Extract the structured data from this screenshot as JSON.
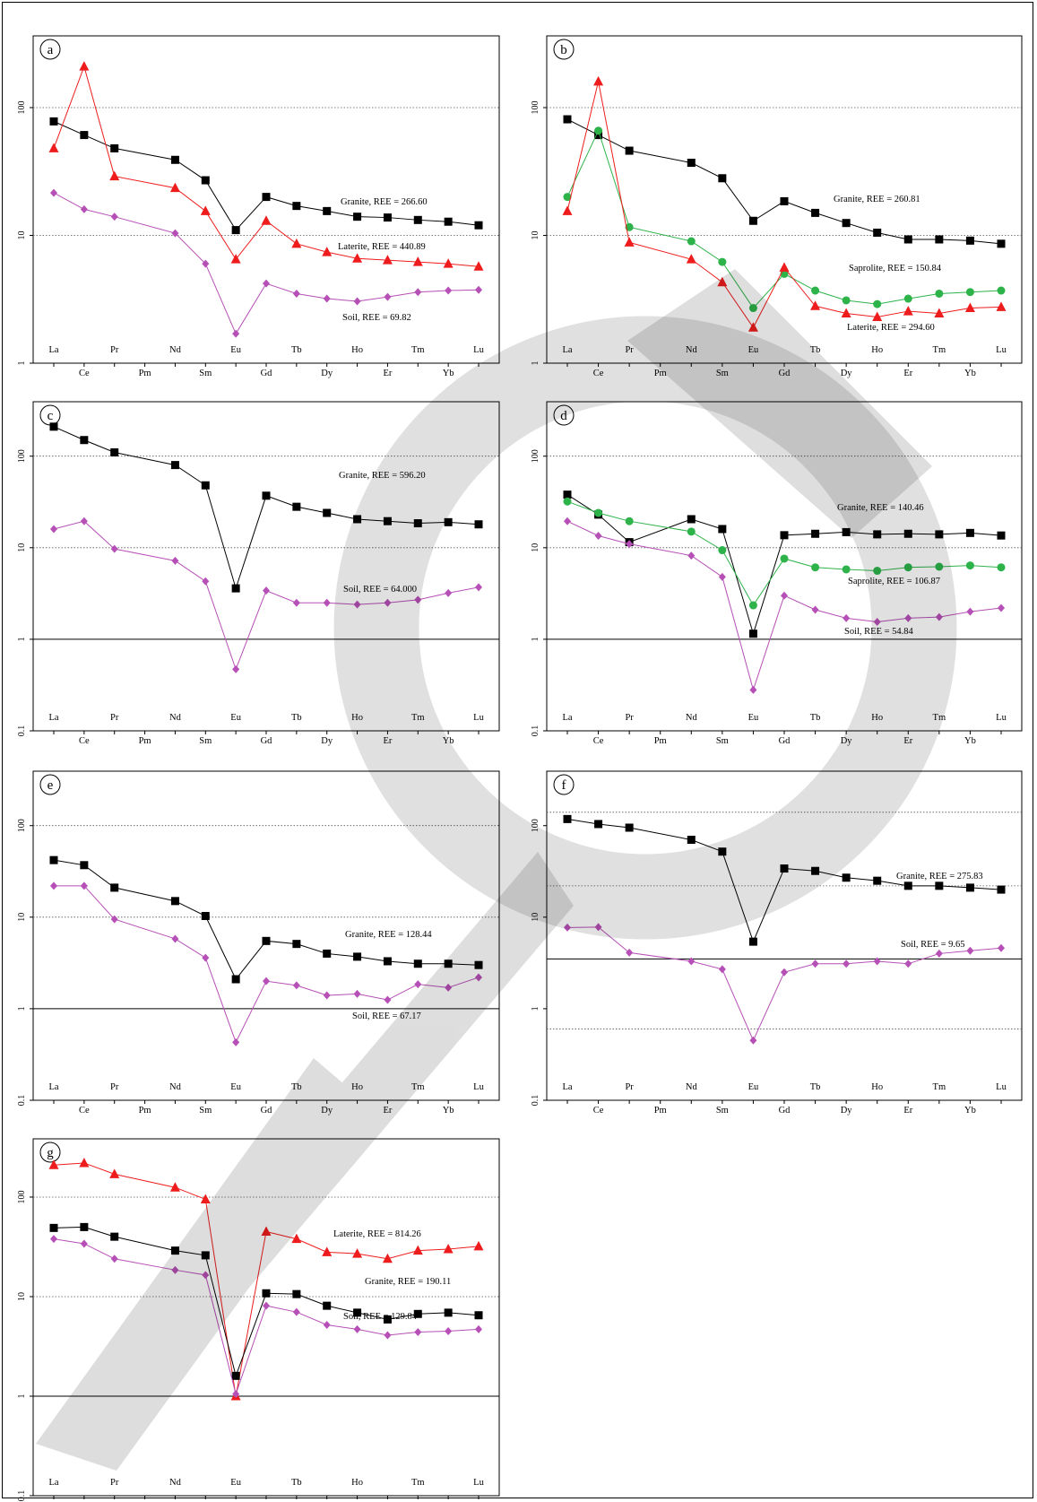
{
  "chart_data": [
    {
      "type": "line",
      "panel": "a",
      "yscale": "log",
      "ylim": [
        1,
        300
      ],
      "ytick_labels": [
        "1",
        "10",
        "100"
      ],
      "categories": [
        "La",
        "Ce",
        "Pr",
        "Pm",
        "Nd",
        "Sm",
        "Eu",
        "Gd",
        "Tb",
        "Dy",
        "Ho",
        "Er",
        "Tm",
        "Yb",
        "Lu"
      ],
      "series": [
        {
          "name": "Granite, REE = 266.60",
          "marker": "square",
          "color": "#000000",
          "values": [
            78,
            61,
            48,
            null,
            39,
            27,
            11,
            20,
            17,
            15.5,
            14,
            13.8,
            13.2,
            12.8,
            12
          ]
        },
        {
          "name": "Laterite, REE = 440.89",
          "marker": "triangle",
          "color": "#ee1c1c",
          "values": [
            48,
            210,
            29,
            null,
            23.5,
            15.5,
            6.5,
            13,
            8.6,
            7.4,
            6.6,
            6.4,
            6.2,
            6,
            5.7
          ]
        },
        {
          "name": "Soil, REE = 69.82",
          "marker": "diamond",
          "color": "#b64fb6",
          "values": [
            21.5,
            16,
            14,
            null,
            10.4,
            6,
            1.7,
            4.2,
            3.5,
            3.2,
            3.05,
            3.3,
            3.6,
            3.7,
            3.75
          ]
        }
      ]
    },
    {
      "type": "line",
      "panel": "b",
      "yscale": "log",
      "ylim": [
        1,
        300
      ],
      "ytick_labels": [
        "1",
        "10",
        "100"
      ],
      "categories": [
        "La",
        "Ce",
        "Pr",
        "Pm",
        "Nd",
        "Sm",
        "Eu",
        "Gd",
        "Tb",
        "Dy",
        "Ho",
        "Er",
        "Tm",
        "Yb",
        "Lu"
      ],
      "series": [
        {
          "name": "Granite, REE = 260.81",
          "marker": "square",
          "color": "#000000",
          "values": [
            81,
            61,
            46,
            null,
            37,
            28,
            13,
            18.5,
            15,
            12.5,
            10.5,
            9.3,
            9.3,
            9.1,
            8.6
          ]
        },
        {
          "name": "Saprolite, REE = 150.84",
          "marker": "circle",
          "color": "#2db34a",
          "values": [
            20,
            66,
            11.6,
            null,
            9,
            6.2,
            2.7,
            5,
            3.7,
            3.1,
            2.9,
            3.2,
            3.5,
            3.6,
            3.7
          ]
        },
        {
          "name": "Laterite, REE = 294.60",
          "marker": "triangle",
          "color": "#ee1c1c",
          "values": [
            15.5,
            160,
            8.8,
            null,
            6.5,
            4.3,
            1.9,
            5.6,
            2.8,
            2.45,
            2.3,
            2.55,
            2.45,
            2.7,
            2.75
          ]
        }
      ]
    },
    {
      "type": "line",
      "panel": "c",
      "yscale": "log",
      "ylim": [
        0.1,
        300
      ],
      "ytick_labels": [
        "0.1",
        "1",
        "10",
        "100"
      ],
      "categories": [
        "La",
        "Ce",
        "Pr",
        "Pm",
        "Nd",
        "Sm",
        "Eu",
        "Gd",
        "Tb",
        "Dy",
        "Ho",
        "Er",
        "Tm",
        "Yb",
        "Lu"
      ],
      "series": [
        {
          "name": "Granite, REE = 596.20",
          "marker": "square",
          "color": "#000000",
          "values": [
            210,
            150,
            110,
            null,
            80,
            48,
            3.6,
            37,
            28,
            24,
            20.5,
            19.5,
            18.5,
            19,
            18
          ]
        },
        {
          "name": "Soil, REE = 64.000",
          "marker": "diamond",
          "color": "#b64fb6",
          "values": [
            16,
            19.5,
            9.7,
            null,
            7.2,
            4.3,
            0.47,
            3.4,
            2.5,
            2.5,
            2.4,
            2.5,
            2.7,
            3.2,
            3.7
          ]
        }
      ]
    },
    {
      "type": "line",
      "panel": "d",
      "yscale": "log",
      "ylim": [
        0.1,
        300
      ],
      "ytick_labels": [
        "0.1",
        "1",
        "10",
        "100"
      ],
      "categories": [
        "La",
        "Ce",
        "Pr",
        "Pm",
        "Nd",
        "Sm",
        "Eu",
        "Gd",
        "Tb",
        "Dy",
        "Ho",
        "Er",
        "Tm",
        "Yb",
        "Lu"
      ],
      "series": [
        {
          "name": "Granite, REE = 140.46",
          "marker": "square",
          "color": "#000000",
          "values": [
            38,
            23,
            11.5,
            null,
            20.5,
            16,
            1.15,
            13.7,
            14.2,
            14.8,
            14,
            14.2,
            14,
            14.5,
            13.6
          ]
        },
        {
          "name": "Saprolite, REE = 106.87",
          "marker": "circle",
          "color": "#2db34a",
          "values": [
            32,
            24,
            19.5,
            null,
            15,
            9.4,
            2.35,
            7.6,
            6.1,
            5.8,
            5.6,
            6.1,
            6.2,
            6.4,
            6.1
          ]
        },
        {
          "name": "Soil, REE = 54.84",
          "marker": "diamond",
          "color": "#b64fb6",
          "values": [
            19.5,
            13.5,
            11,
            null,
            8.2,
            4.8,
            0.28,
            3,
            2.1,
            1.7,
            1.55,
            1.7,
            1.75,
            2,
            2.2
          ]
        }
      ]
    },
    {
      "type": "line",
      "panel": "e",
      "yscale": "log",
      "ylim": [
        0.1,
        300
      ],
      "ytick_labels": [
        "0.1",
        "1",
        "10",
        "100"
      ],
      "categories": [
        "La",
        "Ce",
        "Pr",
        "Pm",
        "Nd",
        "Sm",
        "Eu",
        "Gd",
        "Tb",
        "Dy",
        "Ho",
        "Er",
        "Tm",
        "Yb",
        "Lu"
      ],
      "series": [
        {
          "name": "Granite, REE = 128.44",
          "marker": "square",
          "color": "#000000",
          "values": [
            42,
            37,
            21,
            null,
            15,
            10.3,
            2.1,
            5.5,
            5.1,
            4,
            3.7,
            3.3,
            3.1,
            3.1,
            3
          ]
        },
        {
          "name": "Soil, REE = 67.17",
          "marker": "diamond",
          "color": "#b64fb6",
          "values": [
            22,
            22,
            9.5,
            null,
            5.8,
            3.6,
            0.43,
            2,
            1.8,
            1.4,
            1.45,
            1.25,
            1.85,
            1.7,
            2.2
          ]
        }
      ]
    },
    {
      "type": "line",
      "panel": "f",
      "yscale": "log",
      "ylim": [
        0.1,
        300
      ],
      "ytick_labels": [
        "0.1",
        "1",
        "10",
        "100"
      ],
      "categories": [
        "La",
        "Ce",
        "Pr",
        "Pm",
        "Nd",
        "Sm",
        "Eu",
        "Gd",
        "Tb",
        "Dy",
        "Ho",
        "Er",
        "Tm",
        "Yb",
        "Lu"
      ],
      "series": [
        {
          "name": "Granite, REE = 275.83",
          "marker": "square",
          "color": "#000000",
          "values": [
            118,
            104,
            95,
            null,
            70,
            52,
            5.4,
            34,
            32,
            27,
            25,
            22,
            22,
            21,
            20
          ]
        },
        {
          "name": "Soil, REE = 9.65",
          "marker": "diamond",
          "color": "#b64fb6",
          "values": [
            7.7,
            7.8,
            4.1,
            null,
            3.3,
            2.7,
            0.45,
            2.5,
            3.1,
            3.1,
            3.3,
            3.1,
            4,
            4.3,
            4.6
          ]
        }
      ]
    },
    {
      "type": "line",
      "panel": "g",
      "yscale": "log",
      "ylim": [
        0.1,
        300
      ],
      "ytick_labels": [
        "0.1",
        "1",
        "10",
        "100"
      ],
      "categories": [
        "La",
        "Ce",
        "Pr",
        "Pm",
        "Nd",
        "Sm",
        "Eu",
        "Gd",
        "Tb",
        "Dy",
        "Ho",
        "Er",
        "Tm",
        "Yb",
        "Lu"
      ],
      "series": [
        {
          "name": "Laterite, REE = 814.26",
          "marker": "triangle",
          "color": "#ee1c1c",
          "values": [
            210,
            220,
            170,
            null,
            125,
            95,
            1,
            45,
            38,
            28,
            27,
            24,
            29,
            30,
            32
          ]
        },
        {
          "name": "Granite, REE = 190.11",
          "marker": "square",
          "color": "#000000",
          "values": [
            49,
            50,
            40,
            null,
            29,
            26,
            1.6,
            10.8,
            10.6,
            8.1,
            6.9,
            5.9,
            6.7,
            6.9,
            6.5
          ]
        },
        {
          "name": "Soil, REE = 129.84",
          "marker": "diamond",
          "color": "#b64fb6",
          "values": [
            38,
            34,
            24,
            null,
            18.5,
            16.5,
            1.05,
            8.1,
            7,
            5.2,
            4.7,
            4.1,
            4.4,
            4.5,
            4.7
          ]
        }
      ]
    }
  ]
}
